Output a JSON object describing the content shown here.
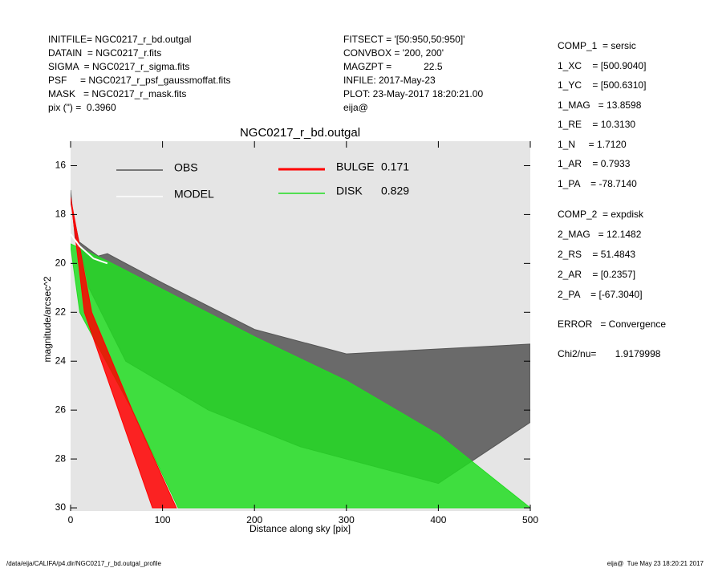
{
  "header": {
    "left": [
      "INITFILE= NGC0217_r_bd.outgal",
      "DATAIN  = NGC0217_r.fits",
      "SIGMA  = NGC0217_r_sigma.fits",
      "PSF     = NGC0217_r_psf_gaussmoffat.fits",
      "MASK   = NGC0217_r_mask.fits",
      "pix (\") =  0.3960"
    ],
    "middle": [
      "FITSECT = '[50:950,50:950]'",
      "CONVBOX = '200, 200'",
      "MAGZPT =            22.5",
      "INFILE: 2017-May-23",
      "PLOT: 23-May-2017 18:20:21.00",
      "eija@"
    ],
    "right": [
      "COMP_1  = sersic",
      "1_XC    = [500.9040]",
      "1_YC    = [500.6310]",
      "1_MAG   = 13.8598",
      "1_RE    = 10.3130",
      "1_N     = 1.7120",
      "1_AR    = 0.7933",
      "1_PA    = -78.7140",
      "COMP_2  = expdisk",
      "2_MAG   = 12.1482",
      "2_RS    = 51.4843",
      "2_AR    = [0.2357]",
      "2_PA    = [-67.3040]",
      "ERROR   = Convergence",
      "Chi2/nu=       1.9179998"
    ]
  },
  "chart_data": {
    "type": "band",
    "title": "NGC0217_r_bd.outgal",
    "xlabel": "Distance along sky [pix]",
    "ylabel": "magnitude/arcsec^2",
    "xlim": [
      0,
      500
    ],
    "xticks": [
      0,
      100,
      200,
      300,
      400,
      500
    ],
    "ylim": [
      30.13,
      15.0
    ],
    "yticks": [
      16,
      18,
      20,
      22,
      24,
      26,
      28,
      30
    ],
    "background": "#e5e5e5",
    "series": [
      {
        "name": "OBS",
        "color": "#555555",
        "x": [
          0,
          5,
          30,
          40,
          100,
          200,
          300,
          400,
          500
        ],
        "values": [
          17.0,
          19.0,
          19.7,
          19.6,
          20.8,
          22.7,
          23.7,
          23.5,
          23.3
        ],
        "x2": [
          0,
          20,
          60,
          150,
          250,
          350,
          400,
          500
        ],
        "values2": [
          17.5,
          21.0,
          24.0,
          26.0,
          27.5,
          28.5,
          29.0,
          26.5
        ]
      },
      {
        "name": "DISK",
        "fraction": 0.829,
        "color": "#22dd22",
        "x": [
          0,
          40,
          200,
          300,
          400,
          500
        ],
        "values": [
          19.2,
          19.9,
          23.0,
          24.8,
          27.0,
          30.0
        ],
        "x2": [
          0,
          10,
          67,
          117
        ],
        "values2": [
          19.3,
          22.0,
          26.0,
          30.0
        ]
      },
      {
        "name": "BULGE",
        "fraction": 0.171,
        "color": "#ff0000",
        "x": [
          0,
          15,
          52,
          89
        ],
        "values": [
          17.3,
          22.0,
          26.0,
          30.0
        ],
        "x2": [
          0,
          23,
          67,
          115
        ],
        "values2": [
          17.3,
          22.0,
          26.0,
          30.0
        ]
      },
      {
        "name": "MODEL",
        "color": "#ffffff",
        "line": true,
        "x": [
          0,
          10,
          25,
          40
        ],
        "values": [
          18.8,
          19.3,
          19.8,
          20.0
        ]
      }
    ]
  },
  "footer": {
    "left": "/data/eija/CALIFA/p4.dir/NGC0217_r_bd.outgal_profile",
    "right": "eija@  Tue May 23 18:20:21 2017"
  }
}
